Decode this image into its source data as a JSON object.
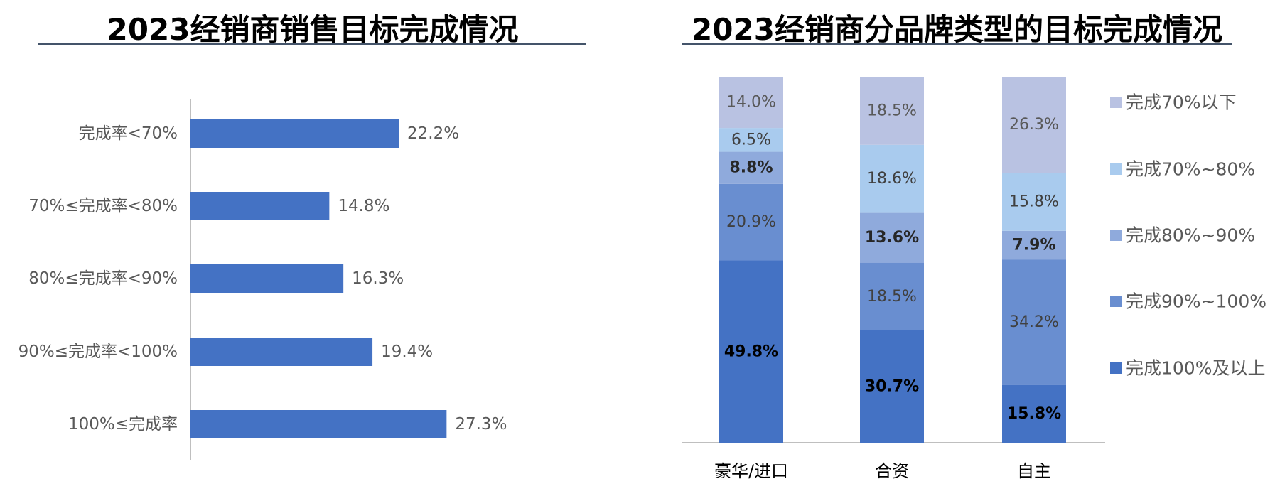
{
  "left_panel": {
    "title": "2023经销商销售目标完成情况"
  },
  "right_panel": {
    "title": "2023经销商分品牌类型的目标完成情况"
  },
  "chart_data": [
    {
      "type": "bar",
      "orientation": "horizontal",
      "title": "2023经销商销售目标完成情况",
      "categories": [
        "完成率<70%",
        "70%≤完成率<80%",
        "80%≤完成率<90%",
        "90%≤完成率<100%",
        "100%≤完成率"
      ],
      "values": [
        22.2,
        14.8,
        16.3,
        19.4,
        27.3
      ],
      "value_labels": [
        "22.2%",
        "14.8%",
        "16.3%",
        "19.4%",
        "27.3%"
      ],
      "xlim": [
        0,
        30
      ],
      "color": "#4472C4",
      "grid": false
    },
    {
      "type": "bar",
      "stacked": true,
      "title": "2023经销商分品牌类型的目标完成情况",
      "categories": [
        "豪华/进口",
        "合资",
        "自主"
      ],
      "ylim": [
        0,
        100
      ],
      "legend_position": "right",
      "grid": false,
      "series": [
        {
          "name": "完成100%及以上",
          "values": [
            49.8,
            30.7,
            15.8
          ],
          "labels": [
            "49.8%",
            "30.7%",
            "15.8%"
          ],
          "color": "#4472C4",
          "label_bold": true,
          "label_color": "#000000"
        },
        {
          "name": "完成90%~100%",
          "values": [
            20.9,
            18.5,
            34.2
          ],
          "labels": [
            "20.9%",
            "18.5%",
            "34.2%"
          ],
          "color": "#698ED0",
          "label_bold": false,
          "label_color": "#404040"
        },
        {
          "name": "完成80%~90%",
          "values": [
            8.8,
            13.6,
            7.9
          ],
          "labels": [
            "8.8%",
            "13.6%",
            "7.9%"
          ],
          "color": "#8FAADC",
          "label_bold": true,
          "label_color": "#262626"
        },
        {
          "name": "完成70%~80%",
          "values": [
            6.5,
            18.6,
            15.8
          ],
          "labels": [
            "6.5%",
            "18.6%",
            "15.8%"
          ],
          "color": "#A9CBEE",
          "label_bold": false,
          "label_color": "#404040"
        },
        {
          "name": "完成70%以下",
          "values": [
            14.0,
            18.5,
            26.3
          ],
          "labels": [
            "14.0%",
            "18.5%",
            "26.3%"
          ],
          "color": "#B9C2E2",
          "label_bold": false,
          "label_color": "#595959"
        }
      ]
    }
  ]
}
